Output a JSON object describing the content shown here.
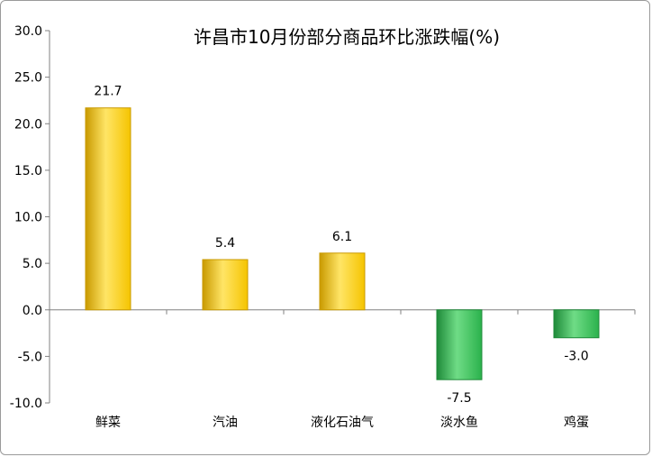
{
  "chart_data": {
    "type": "bar",
    "title": "许昌市10月份部分商品环比涨跌幅(%)",
    "categories": [
      "鲜菜",
      "汽油",
      "液化石油气",
      "淡水鱼",
      "鸡蛋"
    ],
    "values": [
      21.7,
      5.4,
      6.1,
      -7.5,
      -3.0
    ],
    "value_labels": [
      "21.7",
      "5.4",
      "6.1",
      "-7.5",
      "-3.0"
    ],
    "yticks": [
      "30.0",
      "25.0",
      "20.0",
      "15.0",
      "10.0",
      "5.0",
      "0.0",
      "-5.0",
      "-10.0"
    ],
    "ylim": [
      -10,
      30
    ],
    "xlabel": "",
    "ylabel": "",
    "grid": false,
    "legend": "none",
    "colors": {
      "positive_fill": "#f5c400",
      "positive_light": "#ffe566",
      "positive_edge": "#c99a00",
      "negative_fill": "#2bb24c",
      "negative_light": "#6fdc86",
      "negative_edge": "#1e8a39",
      "axis": "#808080"
    }
  }
}
